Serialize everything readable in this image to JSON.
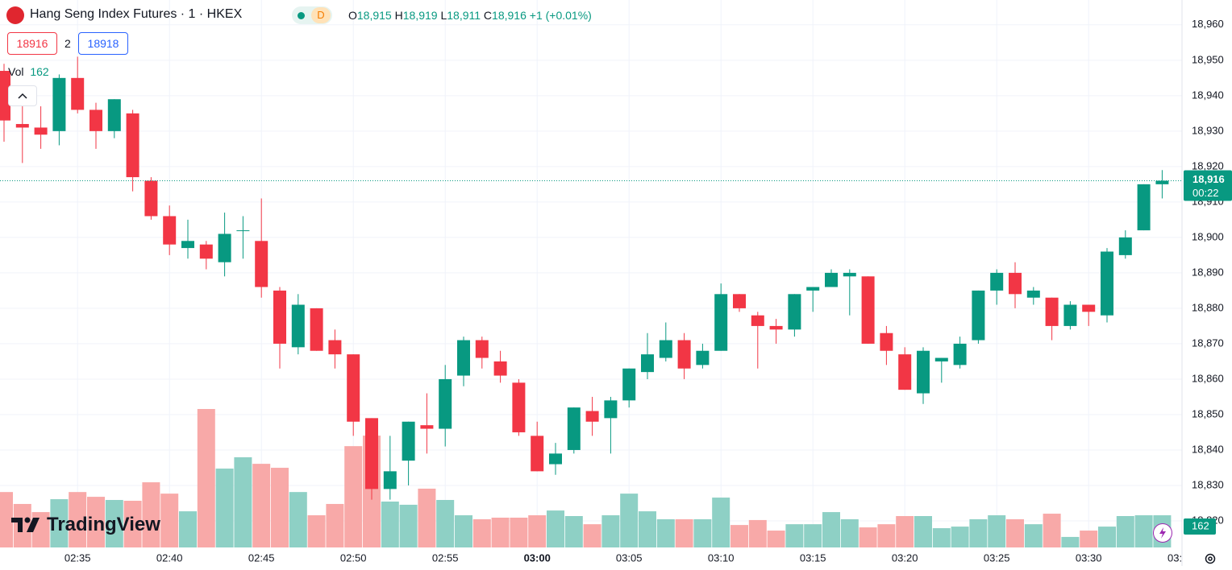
{
  "header": {
    "symbol": "Hang Seng Index Futures · 1 · HKEX",
    "badge": "D",
    "o_key": "O",
    "o": "18,915",
    "h_key": "H",
    "h": "18,919",
    "l_key": "L",
    "l": "18,911",
    "c_key": "C",
    "c": "18,916",
    "change": "+1 (+0.01%)"
  },
  "order_panel": {
    "sell": "18916",
    "qty": "2",
    "buy": "18918"
  },
  "volume_label": "Vol",
  "price_tag": {
    "price": "18,916",
    "countdown": "00:22"
  },
  "x_axis_cut_label": "03:",
  "logo": "TradingView",
  "chart_data": {
    "type": "candlestick",
    "categories": [
      null,
      null,
      null,
      null,
      "02:35",
      null,
      null,
      null,
      null,
      "02:40",
      null,
      null,
      null,
      null,
      "02:45",
      null,
      null,
      null,
      null,
      "02:50",
      null,
      null,
      null,
      null,
      "02:55",
      null,
      null,
      null,
      null,
      "03:00",
      null,
      null,
      null,
      null,
      "03:05",
      null,
      null,
      null,
      null,
      "03:10",
      null,
      null,
      null,
      null,
      "03:15",
      null,
      null,
      null,
      null,
      "03:20",
      null,
      null,
      null,
      null,
      "03:25",
      null,
      null,
      null,
      null,
      "03:30",
      null,
      null,
      null,
      null
    ],
    "open": [
      18947,
      18932,
      18931,
      18930,
      18945,
      18936,
      18930,
      18935,
      18916,
      18906,
      18897,
      18898,
      18893,
      18902,
      18899,
      18885,
      18869,
      18880,
      18871,
      18867,
      18849,
      18829,
      18837,
      18847,
      18846,
      18861,
      18871,
      18865,
      18859,
      18844,
      18836,
      18840,
      18851,
      18849,
      18854,
      18862,
      18866,
      18871,
      18864,
      18868,
      18884,
      18878,
      18875,
      18874,
      18885,
      18886,
      18889,
      18889,
      18873,
      18867,
      18856,
      18865,
      18864,
      18871,
      18885,
      18890,
      18883,
      18883,
      18875,
      18881,
      18878,
      18895,
      18902,
      18915
    ],
    "high": [
      18949,
      18937,
      18937,
      18946,
      18951,
      18938,
      18939,
      18936,
      18917,
      18909,
      18905,
      18899,
      18907,
      18906,
      18911,
      18886,
      18884,
      18880,
      18874,
      18867,
      18849,
      18844,
      18848,
      18856,
      18864,
      18872,
      18872,
      18868,
      18860,
      18848,
      18842,
      18852,
      18855,
      18855,
      18863,
      18873,
      18876,
      18873,
      18870,
      18887,
      18884,
      18879,
      18877,
      18884,
      18886,
      18891,
      18891,
      18889,
      18875,
      18869,
      18869,
      18866,
      18872,
      18885,
      18891,
      18893,
      18886,
      18883,
      18882,
      18881,
      18897,
      18902,
      18915,
      18919
    ],
    "low": [
      18927,
      18921,
      18925,
      18926,
      18935,
      18925,
      18928,
      18913,
      18905,
      18895,
      18894,
      18891,
      18889,
      18894,
      18883,
      18863,
      18867,
      18868,
      18863,
      18844,
      18826,
      18826,
      18830,
      18839,
      18841,
      18858,
      18863,
      18859,
      18844,
      18834,
      18833,
      18839,
      18844,
      18839,
      18852,
      18860,
      18865,
      18860,
      18863,
      18868,
      18879,
      18863,
      18870,
      18872,
      18879,
      18886,
      18878,
      18870,
      18864,
      18857,
      18853,
      18859,
      18863,
      18870,
      18881,
      18880,
      18881,
      18871,
      18874,
      18875,
      18876,
      18894,
      18902,
      18911
    ],
    "close": [
      18933,
      18931,
      18929,
      18945,
      18936,
      18930,
      18939,
      18917,
      18906,
      18898,
      18899,
      18894,
      18901,
      18902,
      18886,
      18870,
      18881,
      18868,
      18867,
      18848,
      18829,
      18834,
      18848,
      18846,
      18860,
      18871,
      18866,
      18861,
      18845,
      18834,
      18839,
      18852,
      18848,
      18854,
      18863,
      18867,
      18871,
      18863,
      18868,
      18884,
      18880,
      18875,
      18874,
      18884,
      18886,
      18890,
      18890,
      18870,
      18868,
      18857,
      18868,
      18866,
      18870,
      18885,
      18890,
      18884,
      18885,
      18875,
      18881,
      18879,
      18896,
      18900,
      18915,
      18916
    ],
    "volume": [
      279,
      219,
      178,
      243,
      279,
      255,
      239,
      235,
      328,
      271,
      182,
      697,
      397,
      454,
      421,
      401,
      279,
      162,
      219,
      510,
      563,
      231,
      215,
      296,
      239,
      162,
      142,
      150,
      150,
      162,
      186,
      158,
      117,
      162,
      271,
      182,
      142,
      142,
      142,
      251,
      113,
      138,
      85,
      117,
      117,
      178,
      142,
      101,
      117,
      158,
      158,
      97,
      105,
      142,
      162,
      142,
      117,
      170,
      53,
      85,
      105,
      158,
      162,
      162
    ],
    "up_color": "#089981",
    "down_color": "#f23645",
    "up_volume_color": "#8ed0c5",
    "down_volume_color": "#f8a9a8",
    "ylim": [
      18812.5,
      18967
    ],
    "yticks": [
      {
        "value": 18820,
        "label": "18,820"
      },
      {
        "value": 18830,
        "label": "18,830"
      },
      {
        "value": 18840,
        "label": "18,840"
      },
      {
        "value": 18850,
        "label": "18,850"
      },
      {
        "value": 18860,
        "label": "18,860"
      },
      {
        "value": 18870,
        "label": "18,870"
      },
      {
        "value": 18880,
        "label": "18,880"
      },
      {
        "value": 18890,
        "label": "18,890"
      },
      {
        "value": 18900,
        "label": "18,900"
      },
      {
        "value": 18910,
        "label": "18,910"
      },
      {
        "value": 18920,
        "label": "18,920"
      },
      {
        "value": 18930,
        "label": "18,930"
      },
      {
        "value": 18940,
        "label": "18,940"
      },
      {
        "value": 18950,
        "label": "18,950"
      },
      {
        "value": 18960,
        "label": "18,960"
      }
    ],
    "grid": true
  }
}
